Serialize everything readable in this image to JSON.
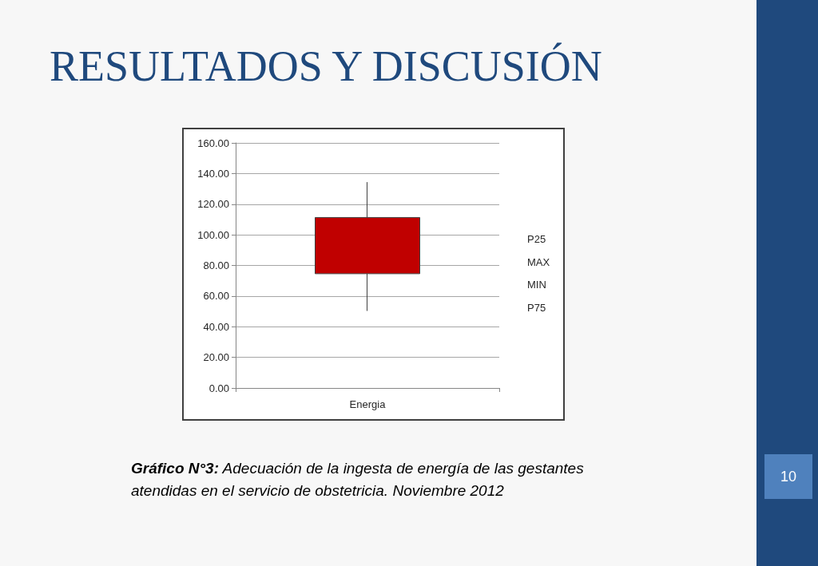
{
  "chart_data": {
    "type": "candlestick",
    "title": "RESULTADOS Y DISCUSIÓN",
    "categories": [
      "Energia"
    ],
    "ohlc": [
      [
        74.6,
        134.4,
        50.3,
        111.3
      ]
    ],
    "color": "#c00000",
    "ylim": [
      0,
      160
    ],
    "yticks": [
      {
        "value": 0,
        "label": "0.00"
      },
      {
        "value": 20,
        "label": "20.00"
      },
      {
        "value": 40,
        "label": "40.00"
      },
      {
        "value": 60,
        "label": "60.00"
      },
      {
        "value": 80,
        "label": "80.00"
      },
      {
        "value": 100,
        "label": "100.00"
      },
      {
        "value": 120,
        "label": "120.00"
      },
      {
        "value": 140,
        "label": "140.00"
      },
      {
        "value": 160,
        "label": "160.00"
      }
    ],
    "grid": "y",
    "annotations": [
      "P25",
      "MAX",
      "MIN",
      "P75",
      "Gráfico N°3: Adecuación de la ingesta de energía de las gestantes\natendidas en el servicio de obstetricia. Noviembre 2012",
      "10"
    ]
  }
}
